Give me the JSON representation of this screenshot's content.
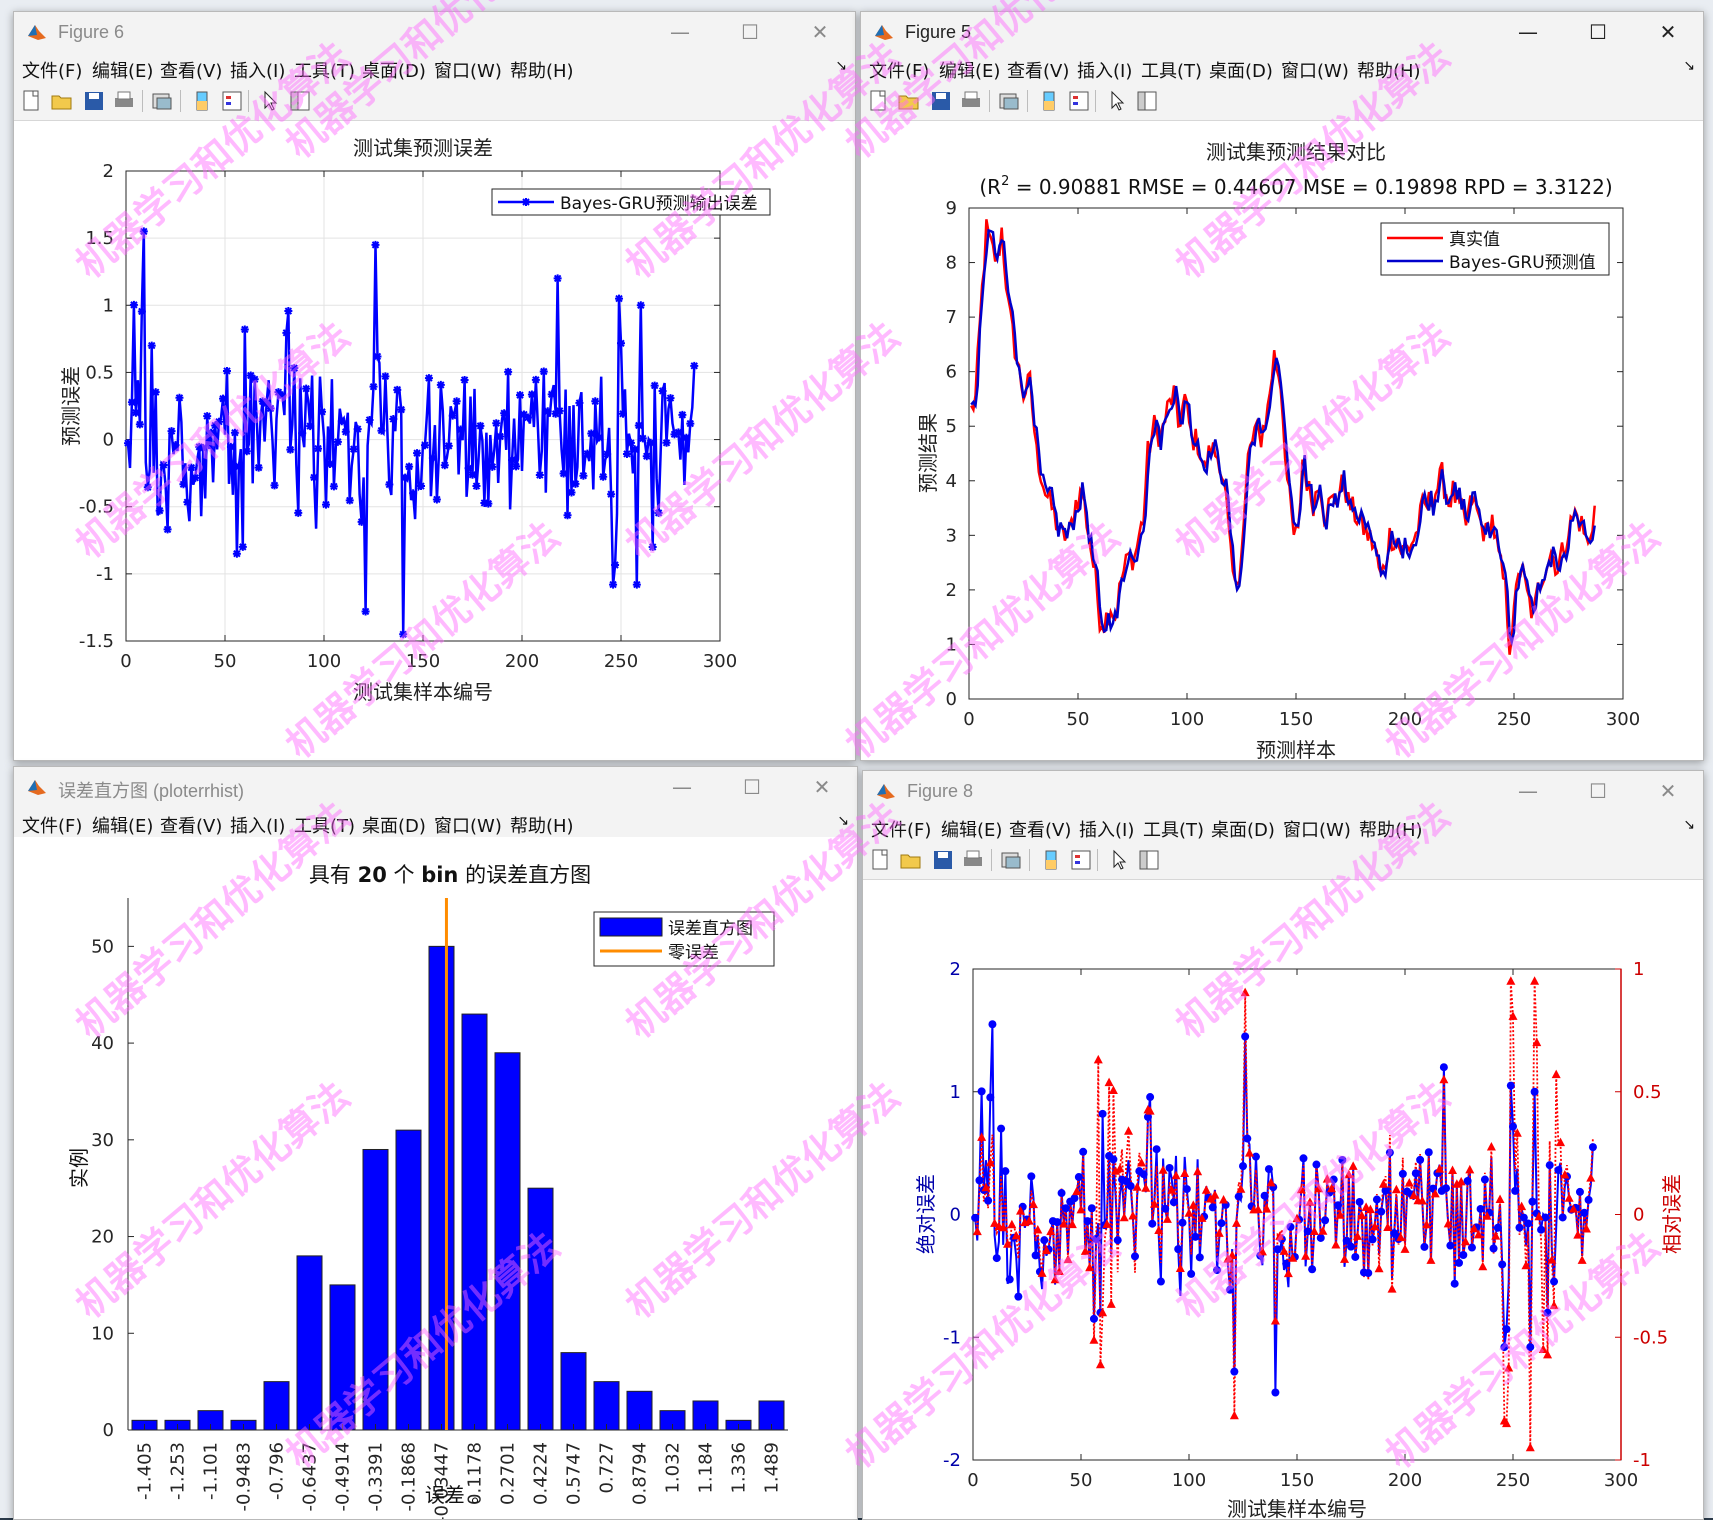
{
  "menus": [
    "文件(F)",
    "编辑(E)",
    "查看(V)",
    "插入(I)",
    "工具(T)",
    "桌面(D)",
    "窗口(W)",
    "帮助(H)"
  ],
  "menu_arrow": "↘",
  "window_buttons": {
    "minimize": "—",
    "maximize": "☐",
    "close": "✕"
  },
  "watermark": "机器学习和优化算法",
  "colors": {
    "blue": "#0000ff",
    "red": "#ff0000",
    "orange": "#ff8c00",
    "darkblue": "#0000cc"
  },
  "windows": {
    "fig6": {
      "title": "Figure 6",
      "chart_data": {
        "type": "line",
        "title": "测试集预测误差",
        "xlabel": "测试集样本编号",
        "ylabel": "预测误差",
        "xlim": [
          0,
          300
        ],
        "ylim": [
          -1.5,
          2
        ],
        "xticks": [
          "0",
          "50",
          "100",
          "150",
          "200",
          "250",
          "300"
        ],
        "yticks": [
          "-1.5",
          "-1",
          "-0.5",
          "0",
          "0.5",
          "1",
          "1.5",
          "2"
        ],
        "legend": [
          "Bayes-GRU预测输出误差"
        ],
        "grid": true,
        "series": [
          {
            "name": "Bayes-GRU预测输出误差",
            "n": 287,
            "values": []
          }
        ]
      }
    },
    "fig5": {
      "title": "Figure 5",
      "chart_data": {
        "type": "line",
        "title": "测试集预测结果对比",
        "subtitle_r": "(R",
        "subtitle_sup": "2",
        "subtitle_rest": " = 0.90881 RMSE = 0.44607 MSE = 0.19898 RPD = 3.3122)",
        "xlabel": "预测样本",
        "ylabel": "预测结果",
        "xlim": [
          0,
          300
        ],
        "ylim": [
          0,
          9
        ],
        "xticks": [
          "0",
          "50",
          "100",
          "150",
          "200",
          "250",
          "300"
        ],
        "yticks": [
          "0",
          "1",
          "2",
          "3",
          "4",
          "5",
          "6",
          "7",
          "8",
          "9"
        ],
        "legend": [
          "真实值",
          "Bayes-GRU预测值"
        ],
        "grid": false,
        "series": [
          {
            "name": "真实值",
            "values": []
          },
          {
            "name": "Bayes-GRU预测值",
            "values": []
          }
        ]
      }
    },
    "hist": {
      "title": "误差直方图 (ploterrhist)",
      "chart_data": {
        "type": "bar",
        "title_parts": [
          "具有 ",
          "20",
          " 个 ",
          "bin",
          " 的误差直方图"
        ],
        "xlabel": "误差 。",
        "ylabel": "实例",
        "ylim": [
          0,
          55
        ],
        "yticks": [
          "0",
          "10",
          "20",
          "30",
          "40",
          "50"
        ],
        "categories": [
          "-1.405",
          "-1.253",
          "-1.101",
          "-0.9483",
          "-0.796",
          "-0.6437",
          "-0.4914",
          "-0.3391",
          "-0.1868",
          "-0.03447",
          "0.1178",
          "0.2701",
          "0.4224",
          "0.5747",
          "0.727",
          "0.8794",
          "1.032",
          "1.184",
          "1.336",
          "1.489"
        ],
        "values": [
          1,
          1,
          2,
          1,
          5,
          18,
          15,
          29,
          31,
          50,
          43,
          39,
          25,
          8,
          5,
          4,
          2,
          3,
          1,
          3
        ],
        "zero_error_bin": 9.65,
        "legend": [
          "误差直方图",
          "零误差"
        ]
      }
    },
    "fig8": {
      "title": "Figure 8",
      "chart_data": {
        "type": "line",
        "xlabel": "测试集样本编号",
        "ylabel_left": "绝对误差",
        "ylabel_right": "相对误差",
        "xlim": [
          0,
          300
        ],
        "ylim_left": [
          -2,
          2
        ],
        "ylim_right": [
          -1,
          1
        ],
        "xticks": [
          "0",
          "50",
          "100",
          "150",
          "200",
          "250",
          "300"
        ],
        "yticks_left": [
          "-2",
          "-1",
          "0",
          "1",
          "2"
        ],
        "yticks_right": [
          "-1",
          "-0.5",
          "0",
          "0.5",
          "1"
        ],
        "series": [
          {
            "name": "绝对误差",
            "values": []
          },
          {
            "name": "相对误差",
            "values": []
          }
        ]
      }
    }
  }
}
